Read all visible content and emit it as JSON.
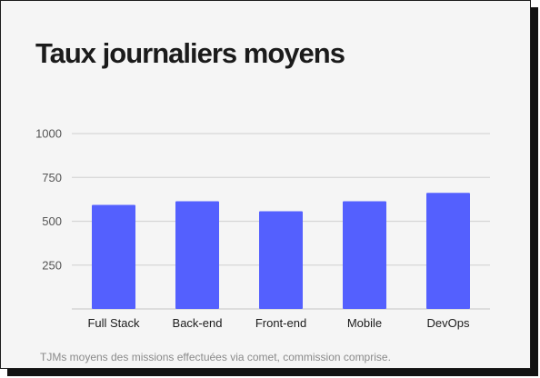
{
  "chart_data": {
    "type": "bar",
    "title": "Taux journaliers moyens",
    "categories": [
      "Full Stack",
      "Back-end",
      "Front-end",
      "Mobile",
      "DevOps"
    ],
    "values": [
      593,
      614,
      557,
      614,
      662
    ],
    "ylim": [
      0,
      1000
    ],
    "yticks": [
      250,
      500,
      750,
      1000
    ],
    "xlabel": "",
    "ylabel": "",
    "grid": true,
    "bar_color": "#5460fe",
    "caption": "TJMs moyens des missions effectuées via comet, commission comprise."
  }
}
